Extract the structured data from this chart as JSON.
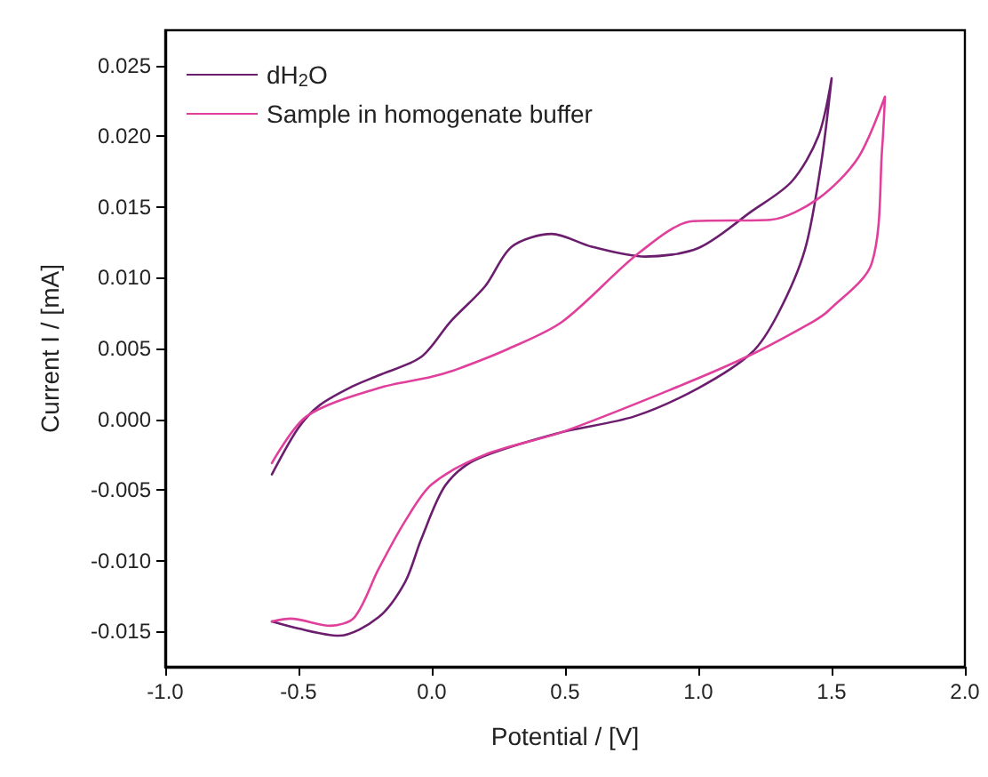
{
  "chart_data": {
    "type": "line",
    "xlabel": "Potential / [V]",
    "ylabel": "Current I / [mA]",
    "xlim": [
      -1.0,
      2.0
    ],
    "ylim": [
      -0.0175,
      0.0275
    ],
    "xticks": [
      {
        "value": -1.0,
        "label": "-1.0"
      },
      {
        "value": -0.5,
        "label": "-0.5"
      },
      {
        "value": 0.0,
        "label": "0.0"
      },
      {
        "value": 0.5,
        "label": "0.5"
      },
      {
        "value": 1.0,
        "label": "1.0"
      },
      {
        "value": 1.5,
        "label": "1.5"
      },
      {
        "value": 2.0,
        "label": "2.0"
      }
    ],
    "yticks": [
      {
        "value": -0.015,
        "label": "-0.015"
      },
      {
        "value": -0.01,
        "label": "-0.010"
      },
      {
        "value": -0.005,
        "label": "-0.005"
      },
      {
        "value": 0.0,
        "label": "0.000"
      },
      {
        "value": 0.005,
        "label": "0.005"
      },
      {
        "value": 0.01,
        "label": "0.010"
      },
      {
        "value": 0.015,
        "label": "0.015"
      },
      {
        "value": 0.02,
        "label": "0.020"
      },
      {
        "value": 0.025,
        "label": "0.025"
      }
    ],
    "grid": false,
    "legend": "top left",
    "marker": "none",
    "line_style": "solid",
    "series": [
      {
        "name": "dH$_{2}$O",
        "color": "#6b1d6e",
        "x": [
          -0.6,
          -0.5,
          -0.42,
          -0.3,
          -0.2,
          -0.04,
          0.07,
          0.2,
          0.3,
          0.45,
          0.6,
          0.8,
          1.0,
          1.2,
          1.35,
          1.45,
          1.5,
          1.46,
          1.4,
          1.3,
          1.2,
          1.0,
          0.76,
          0.47,
          0.16,
          0.05,
          -0.04,
          -0.1,
          -0.2,
          -0.35,
          -0.5,
          -0.6
        ],
        "values": [
          -0.0039,
          -0.0006,
          0.001,
          0.0023,
          0.0031,
          0.0044,
          0.0069,
          0.0094,
          0.0122,
          0.0131,
          0.0122,
          0.0115,
          0.0121,
          0.0147,
          0.0168,
          0.02,
          0.0241,
          0.018,
          0.012,
          0.0075,
          0.0047,
          0.0022,
          0.0002,
          -0.001,
          -0.0029,
          -0.0047,
          -0.0085,
          -0.0115,
          -0.014,
          -0.0153,
          -0.0148,
          -0.0143
        ]
      },
      {
        "name": "Sample in homogenate buffer",
        "color": "#e0409b",
        "x": [
          -0.6,
          -0.47,
          -0.2,
          0.0,
          0.09,
          0.29,
          0.49,
          0.78,
          0.98,
          1.27,
          1.45,
          1.6,
          1.7,
          1.69,
          1.65,
          1.49,
          1.43,
          1.18,
          0.91,
          0.49,
          0.2,
          0.0,
          -0.1,
          -0.2,
          -0.29,
          -0.38,
          -0.53,
          -0.6
        ],
        "values": [
          -0.0031,
          0.0002,
          0.0022,
          0.003,
          0.0035,
          0.005,
          0.0069,
          0.0118,
          0.014,
          0.0141,
          0.0156,
          0.0185,
          0.0228,
          0.0193,
          0.011,
          0.0077,
          0.0069,
          0.0044,
          0.0022,
          -0.0009,
          -0.0025,
          -0.0046,
          -0.0072,
          -0.0106,
          -0.014,
          -0.0146,
          -0.0141,
          -0.0143
        ]
      }
    ]
  }
}
